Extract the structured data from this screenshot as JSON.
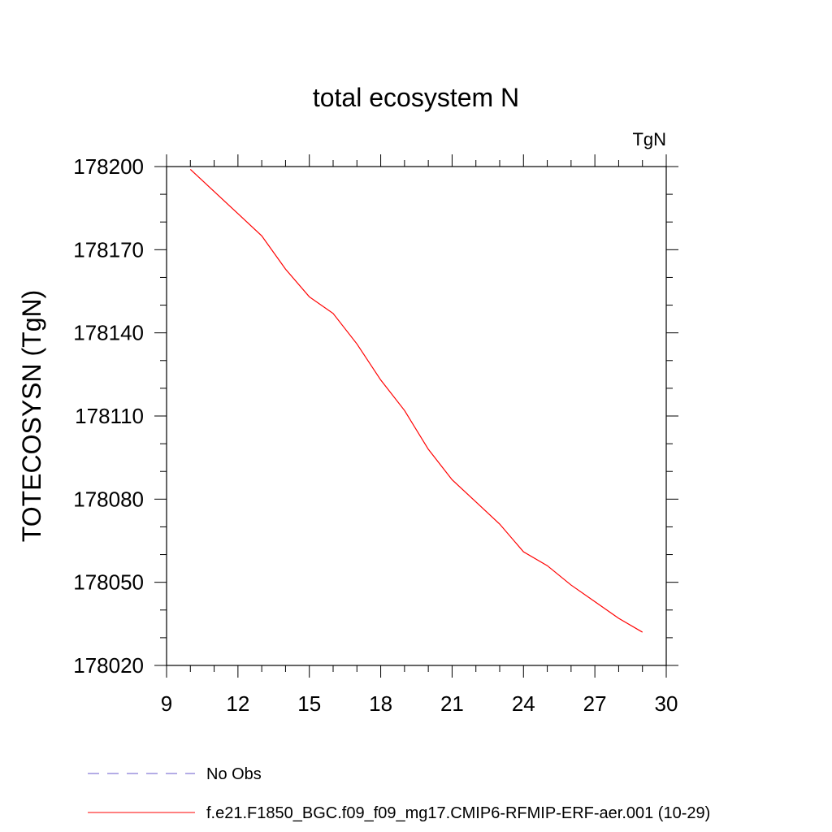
{
  "chart_data": {
    "type": "line",
    "title": "total ecosystem N",
    "units_label": "TgN",
    "ylabel": "TOTECOSYSN  (TgN)",
    "xlabel": "",
    "xlim": [
      9,
      30
    ],
    "ylim": [
      178020,
      178200
    ],
    "xticks": [
      9,
      12,
      15,
      18,
      21,
      24,
      27,
      30
    ],
    "yticks": [
      178020,
      178050,
      178080,
      178110,
      178140,
      178170,
      178200
    ],
    "x_minor_step": 1,
    "y_minor_step": 10,
    "grid": false,
    "legend_position": "bottom",
    "series": [
      {
        "name": "No Obs",
        "color": "#6a5acd",
        "dash": "dashed",
        "x": [],
        "y": []
      },
      {
        "name": "f.e21.F1850_BGC.f09_f09_mg17.CMIP6-RFMIP-ERF-aer.001 (10-29)",
        "color": "#ff0000",
        "dash": "solid",
        "x": [
          10,
          11,
          12,
          13,
          14,
          15,
          16,
          17,
          18,
          19,
          20,
          21,
          22,
          23,
          24,
          25,
          26,
          27,
          28,
          29
        ],
        "y": [
          178199,
          178191,
          178183,
          178175,
          178163,
          178153,
          178147,
          178136,
          178123,
          178112,
          178098,
          178087,
          178079,
          178071,
          178061,
          178056,
          178049,
          178043,
          178037,
          178032
        ]
      }
    ]
  }
}
